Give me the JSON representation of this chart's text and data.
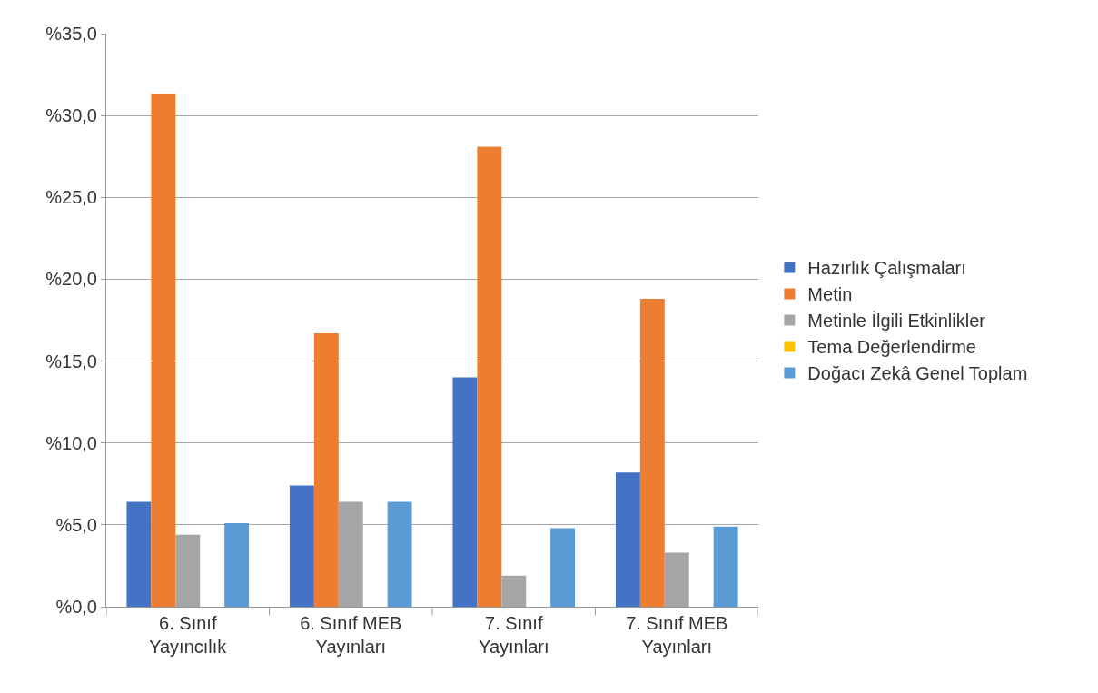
{
  "chart_data": {
    "type": "bar",
    "categories": [
      "6. Sınıf Yayıncılık",
      "6. Sınıf MEB Yayınları",
      "7. Sınıf Yayınları",
      "7. Sınıf MEB Yayınları"
    ],
    "series": [
      {
        "name": "Hazırlık Çalışmaları",
        "color": "#4472c4",
        "values": [
          6.4,
          7.4,
          14.0,
          8.2
        ]
      },
      {
        "name": "Metin",
        "color": "#ed7d31",
        "values": [
          31.3,
          16.7,
          28.1,
          18.8
        ]
      },
      {
        "name": "Metinle İlgili Etkinlikler",
        "color": "#a5a5a5",
        "values": [
          4.4,
          6.4,
          1.9,
          3.3
        ]
      },
      {
        "name": "Tema Değerlendirme",
        "color": "#ffc000",
        "values": [
          0,
          0,
          0,
          0
        ]
      },
      {
        "name": "Doğacı Zekâ Genel Toplam",
        "color": "#5b9bd5",
        "values": [
          5.1,
          6.4,
          4.8,
          4.9
        ]
      }
    ],
    "ylim": [
      0,
      35
    ],
    "yticks": [
      {
        "value": 0,
        "label": "%0,0"
      },
      {
        "value": 5,
        "label": "%5,0"
      },
      {
        "value": 10,
        "label": "%10,0"
      },
      {
        "value": 15,
        "label": "%15,0"
      },
      {
        "value": 20,
        "label": "%20,0"
      },
      {
        "value": 25,
        "label": "%25,0"
      },
      {
        "value": 30,
        "label": "%30,0"
      },
      {
        "value": 35,
        "label": "%35,0"
      }
    ],
    "grid": "y",
    "legend": "right"
  }
}
